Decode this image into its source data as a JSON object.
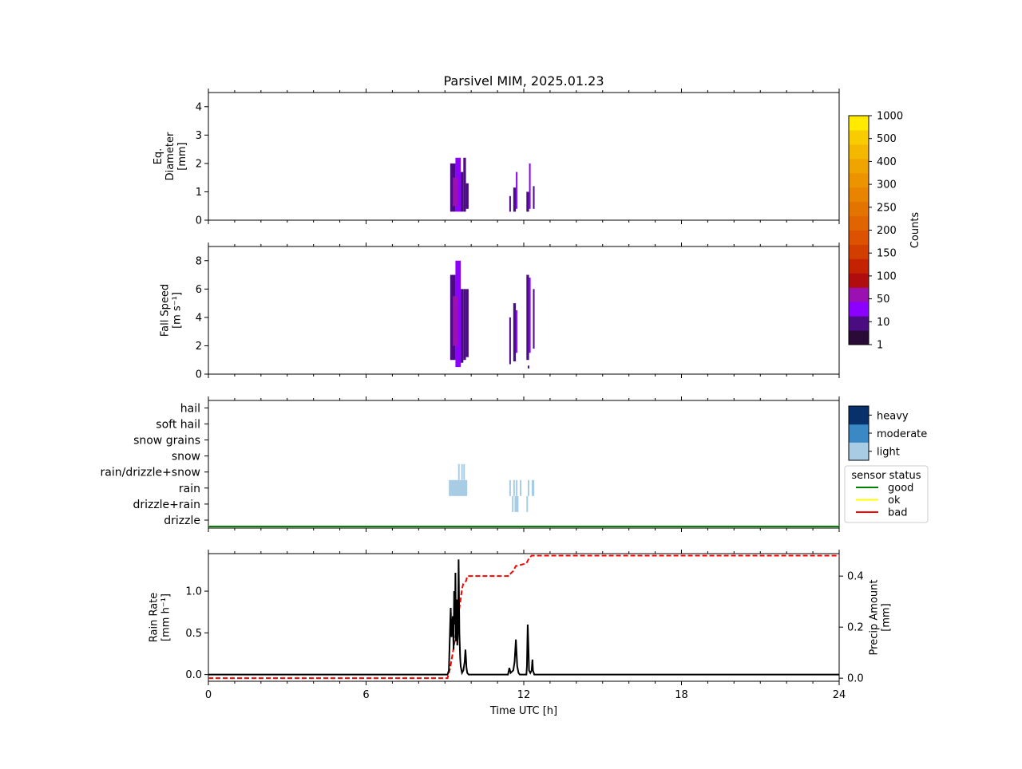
{
  "title": "Parsivel MIM, 2025.01.23",
  "xlabel": "Time UTC [h]",
  "x_ticks": [
    0,
    6,
    12,
    18,
    24
  ],
  "colors": {
    "counts_scale": [
      "#2a0a36",
      "#4b0c82",
      "#8b00ff",
      "#9b10b0",
      "#b00e0e",
      "#c42200",
      "#d23d00",
      "#dc5200",
      "#e06400",
      "#e47400",
      "#e88400",
      "#ec9400",
      "#f0a400",
      "#f4b800",
      "#f8cc00",
      "#ffea00"
    ],
    "intensity_light": "#a8cce4",
    "intensity_moderate": "#3a88c4",
    "intensity_heavy": "#08306b",
    "status_good": "#008000",
    "status_ok": "#ffff00",
    "status_bad": "#ff0000"
  },
  "colorbar_counts": {
    "label": "Counts",
    "ticks": [
      "1",
      "10",
      "50",
      "100",
      "150",
      "200",
      "250",
      "300",
      "400",
      "500",
      "1000"
    ]
  },
  "panel_diameter": {
    "ylabel_lines": [
      "Eq.",
      "Diameter",
      "[mm]"
    ],
    "ylim": [
      0,
      4.5
    ],
    "yticks": [
      0,
      1,
      2,
      3,
      4
    ]
  },
  "panel_fallspeed": {
    "ylabel_lines": [
      "Fall Speed",
      "[m s⁻¹]"
    ],
    "ylim": [
      0,
      9
    ],
    "yticks": [
      0,
      2,
      4,
      6,
      8
    ]
  },
  "panel_type": {
    "categories": [
      "drizzle",
      "drizzle+rain",
      "rain",
      "rain/drizzle+snow",
      "snow",
      "snow grains",
      "soft hail",
      "hail"
    ],
    "intensity_legend": [
      "light",
      "moderate",
      "heavy"
    ],
    "sensor_legend_title": "sensor status",
    "sensor_legend": [
      "good",
      "ok",
      "bad"
    ]
  },
  "panel_rain": {
    "ylabel_lines": [
      "Rain Rate",
      "[mm h⁻¹]"
    ],
    "ylim": [
      -0.08,
      1.45
    ],
    "yticks": [
      "0.0",
      "0.5",
      "1.0"
    ],
    "y2label_lines": [
      "Precip Amount",
      "[mm]"
    ],
    "y2lim": [
      -0.012,
      0.488
    ],
    "y2ticks": [
      "0.0",
      "0.2",
      "0.4"
    ]
  },
  "chart_data": [
    {
      "type": "heatmap",
      "name": "diameter",
      "x_range": [
        0,
        24
      ],
      "y_range": [
        0,
        4.5
      ],
      "cells": [
        [
          9.2,
          9.4,
          0.3,
          2.0,
          1
        ],
        [
          9.4,
          9.6,
          0.3,
          2.2,
          2
        ],
        [
          9.6,
          9.7,
          0.3,
          1.7,
          1
        ],
        [
          9.3,
          9.5,
          0.5,
          1.5,
          3
        ],
        [
          9.5,
          9.6,
          0.6,
          1.3,
          2
        ],
        [
          9.7,
          9.8,
          0.3,
          2.2,
          1
        ],
        [
          9.8,
          9.9,
          0.4,
          1.3,
          1
        ],
        [
          11.45,
          11.5,
          0.3,
          0.85,
          1
        ],
        [
          11.6,
          11.7,
          0.3,
          1.15,
          1
        ],
        [
          11.7,
          11.75,
          0.4,
          1.7,
          2
        ],
        [
          12.1,
          12.2,
          0.3,
          1.0,
          1
        ],
        [
          12.2,
          12.25,
          0.4,
          2.0,
          2
        ],
        [
          12.35,
          12.4,
          0.4,
          1.2,
          1
        ]
      ]
    },
    {
      "type": "heatmap",
      "name": "fall speed",
      "x_range": [
        0,
        24
      ],
      "y_range": [
        0,
        9
      ],
      "cells": [
        [
          9.2,
          9.4,
          1.0,
          7.0,
          1
        ],
        [
          9.4,
          9.6,
          0.5,
          8.0,
          2
        ],
        [
          9.6,
          9.7,
          0.8,
          6.0,
          1
        ],
        [
          9.3,
          9.5,
          2.0,
          5.5,
          3
        ],
        [
          9.5,
          9.6,
          2.5,
          5.0,
          2
        ],
        [
          9.7,
          9.8,
          1.0,
          6.0,
          1
        ],
        [
          9.8,
          9.9,
          1.2,
          6.0,
          1
        ],
        [
          11.45,
          11.5,
          0.7,
          4.0,
          1
        ],
        [
          11.6,
          11.7,
          0.9,
          5.0,
          1
        ],
        [
          11.7,
          11.75,
          1.5,
          4.5,
          2
        ],
        [
          12.1,
          12.2,
          1.0,
          7.0,
          1
        ],
        [
          12.2,
          12.25,
          1.5,
          6.8,
          2
        ],
        [
          12.35,
          12.4,
          1.8,
          6.0,
          1
        ],
        [
          12.15,
          12.2,
          0.4,
          0.6,
          1
        ]
      ]
    },
    {
      "type": "bar",
      "name": "precipitation type",
      "blocks": [
        [
          9.15,
          9.85,
          "rain",
          "light"
        ],
        [
          9.5,
          9.5,
          "rain/drizzle+snow",
          "light"
        ],
        [
          9.62,
          9.62,
          "rain/drizzle+snow",
          "light"
        ],
        [
          9.7,
          9.7,
          "rain/drizzle+snow",
          "light"
        ],
        [
          11.45,
          11.45,
          "rain",
          "light"
        ],
        [
          11.6,
          11.6,
          "rain",
          "light"
        ],
        [
          11.7,
          11.75,
          "rain",
          "light"
        ],
        [
          11.85,
          11.85,
          "rain",
          "light"
        ],
        [
          12.15,
          12.15,
          "rain",
          "light"
        ],
        [
          12.3,
          12.4,
          "rain",
          "light"
        ],
        [
          11.55,
          11.55,
          "drizzle+rain",
          "light"
        ],
        [
          11.65,
          11.8,
          "drizzle+rain",
          "light"
        ],
        [
          12.1,
          12.1,
          "drizzle+rain",
          "light"
        ]
      ],
      "status": [
        [
          0,
          24,
          "good"
        ]
      ]
    },
    {
      "type": "line",
      "name": "rain",
      "series": [
        {
          "role": "rain_rate",
          "x": [
            0,
            9.1,
            9.15,
            9.2,
            9.22,
            9.25,
            9.3,
            9.33,
            9.35,
            9.38,
            9.4,
            9.42,
            9.45,
            9.47,
            9.5,
            9.52,
            9.55,
            9.58,
            9.6,
            9.65,
            9.7,
            9.75,
            9.78,
            9.8,
            9.82,
            9.85,
            9.9,
            10.0,
            11.4,
            11.45,
            11.5,
            11.6,
            11.65,
            11.7,
            11.75,
            11.8,
            11.85,
            12.1,
            12.12,
            12.15,
            12.18,
            12.2,
            12.25,
            12.3,
            12.33,
            12.35,
            12.4,
            24
          ],
          "y": [
            0,
            0,
            0.05,
            0.6,
            0.8,
            0.45,
            0.7,
            0.3,
            1.0,
            0.6,
            1.22,
            0.4,
            0.9,
            0.35,
            0.55,
            1.38,
            0.5,
            0.2,
            0.1,
            0.02,
            0.05,
            0.15,
            0.3,
            0.2,
            0.08,
            0.02,
            0,
            0,
            0,
            0.08,
            0.02,
            0.05,
            0.15,
            0.42,
            0.1,
            0.02,
            0,
            0,
            0.1,
            0.6,
            0.3,
            0.05,
            0.02,
            0.05,
            0.18,
            0.05,
            0,
            0
          ]
        },
        {
          "role": "precip_amount",
          "x": [
            0,
            9.1,
            9.2,
            9.3,
            9.4,
            9.5,
            9.6,
            9.65,
            9.7,
            9.8,
            9.85,
            11.45,
            11.5,
            11.6,
            11.7,
            11.75,
            12.1,
            12.2,
            12.3,
            24
          ],
          "y": [
            0,
            0,
            0.04,
            0.1,
            0.16,
            0.24,
            0.31,
            0.35,
            0.37,
            0.38,
            0.4,
            0.4,
            0.41,
            0.42,
            0.44,
            0.44,
            0.45,
            0.47,
            0.48,
            0.48
          ]
        }
      ]
    }
  ]
}
